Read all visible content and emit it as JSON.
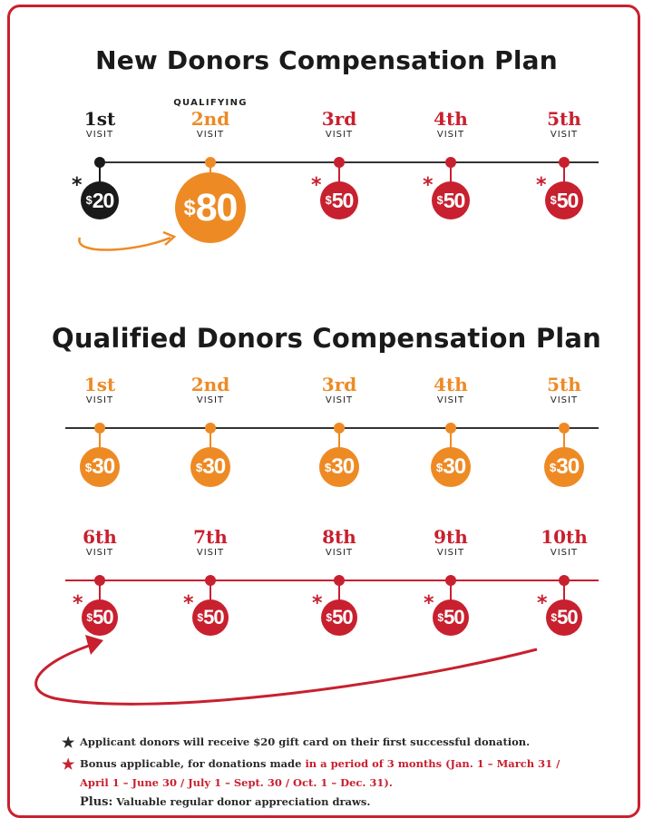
{
  "colors": {
    "red": "#c8202f",
    "orange": "#ee8a24",
    "black": "#1a1a1a"
  },
  "new_plan": {
    "title": "New Donors Compensation Plan",
    "visits": [
      {
        "ordinal": "1st",
        "label": "VISIT",
        "amount": "20",
        "color": "#1a1a1a",
        "asterisk": true,
        "asterisk_color": "#1a1a1a"
      },
      {
        "ordinal": "2nd",
        "label": "VISIT",
        "prefix": "QUALIFYING",
        "amount": "80",
        "color": "#ee8a24",
        "asterisk": false
      },
      {
        "ordinal": "3rd",
        "label": "VISIT",
        "amount": "50",
        "color": "#c8202f",
        "asterisk": true,
        "asterisk_color": "#c8202f"
      },
      {
        "ordinal": "4th",
        "label": "VISIT",
        "amount": "50",
        "color": "#c8202f",
        "asterisk": true,
        "asterisk_color": "#c8202f"
      },
      {
        "ordinal": "5th",
        "label": "VISIT",
        "amount": "50",
        "color": "#c8202f",
        "asterisk": true,
        "asterisk_color": "#c8202f"
      }
    ]
  },
  "qualified_plan": {
    "title": "Qualified Donors Compensation Plan",
    "row1": [
      {
        "ordinal": "1st",
        "label": "VISIT",
        "amount": "30"
      },
      {
        "ordinal": "2nd",
        "label": "VISIT",
        "amount": "30"
      },
      {
        "ordinal": "3rd",
        "label": "VISIT",
        "amount": "30"
      },
      {
        "ordinal": "4th",
        "label": "VISIT",
        "amount": "30"
      },
      {
        "ordinal": "5th",
        "label": "VISIT",
        "amount": "30"
      }
    ],
    "row2": [
      {
        "ordinal": "6th",
        "label": "VISIT",
        "amount": "50"
      },
      {
        "ordinal": "7th",
        "label": "VISIT",
        "amount": "50"
      },
      {
        "ordinal": "8th",
        "label": "VISIT",
        "amount": "50"
      },
      {
        "ordinal": "9th",
        "label": "VISIT",
        "amount": "50"
      },
      {
        "ordinal": "10th",
        "label": "VISIT",
        "amount": "50"
      }
    ]
  },
  "currency": "$",
  "asterisk": "*",
  "notes": {
    "star": "★",
    "note1": "Applicant donors will receive $20 gift card on their first successful donation.",
    "note2_a": "Bonus applicable, for donations made ",
    "note2_b": "in a period of 3 months (Jan. 1 – March 31 / April 1 – June 30 / July 1 – Sept. 30 / Oct. 1 – Dec. 31).",
    "plus_label": "Plus:",
    "plus_text": " Valuable regular donor appreciation draws."
  }
}
